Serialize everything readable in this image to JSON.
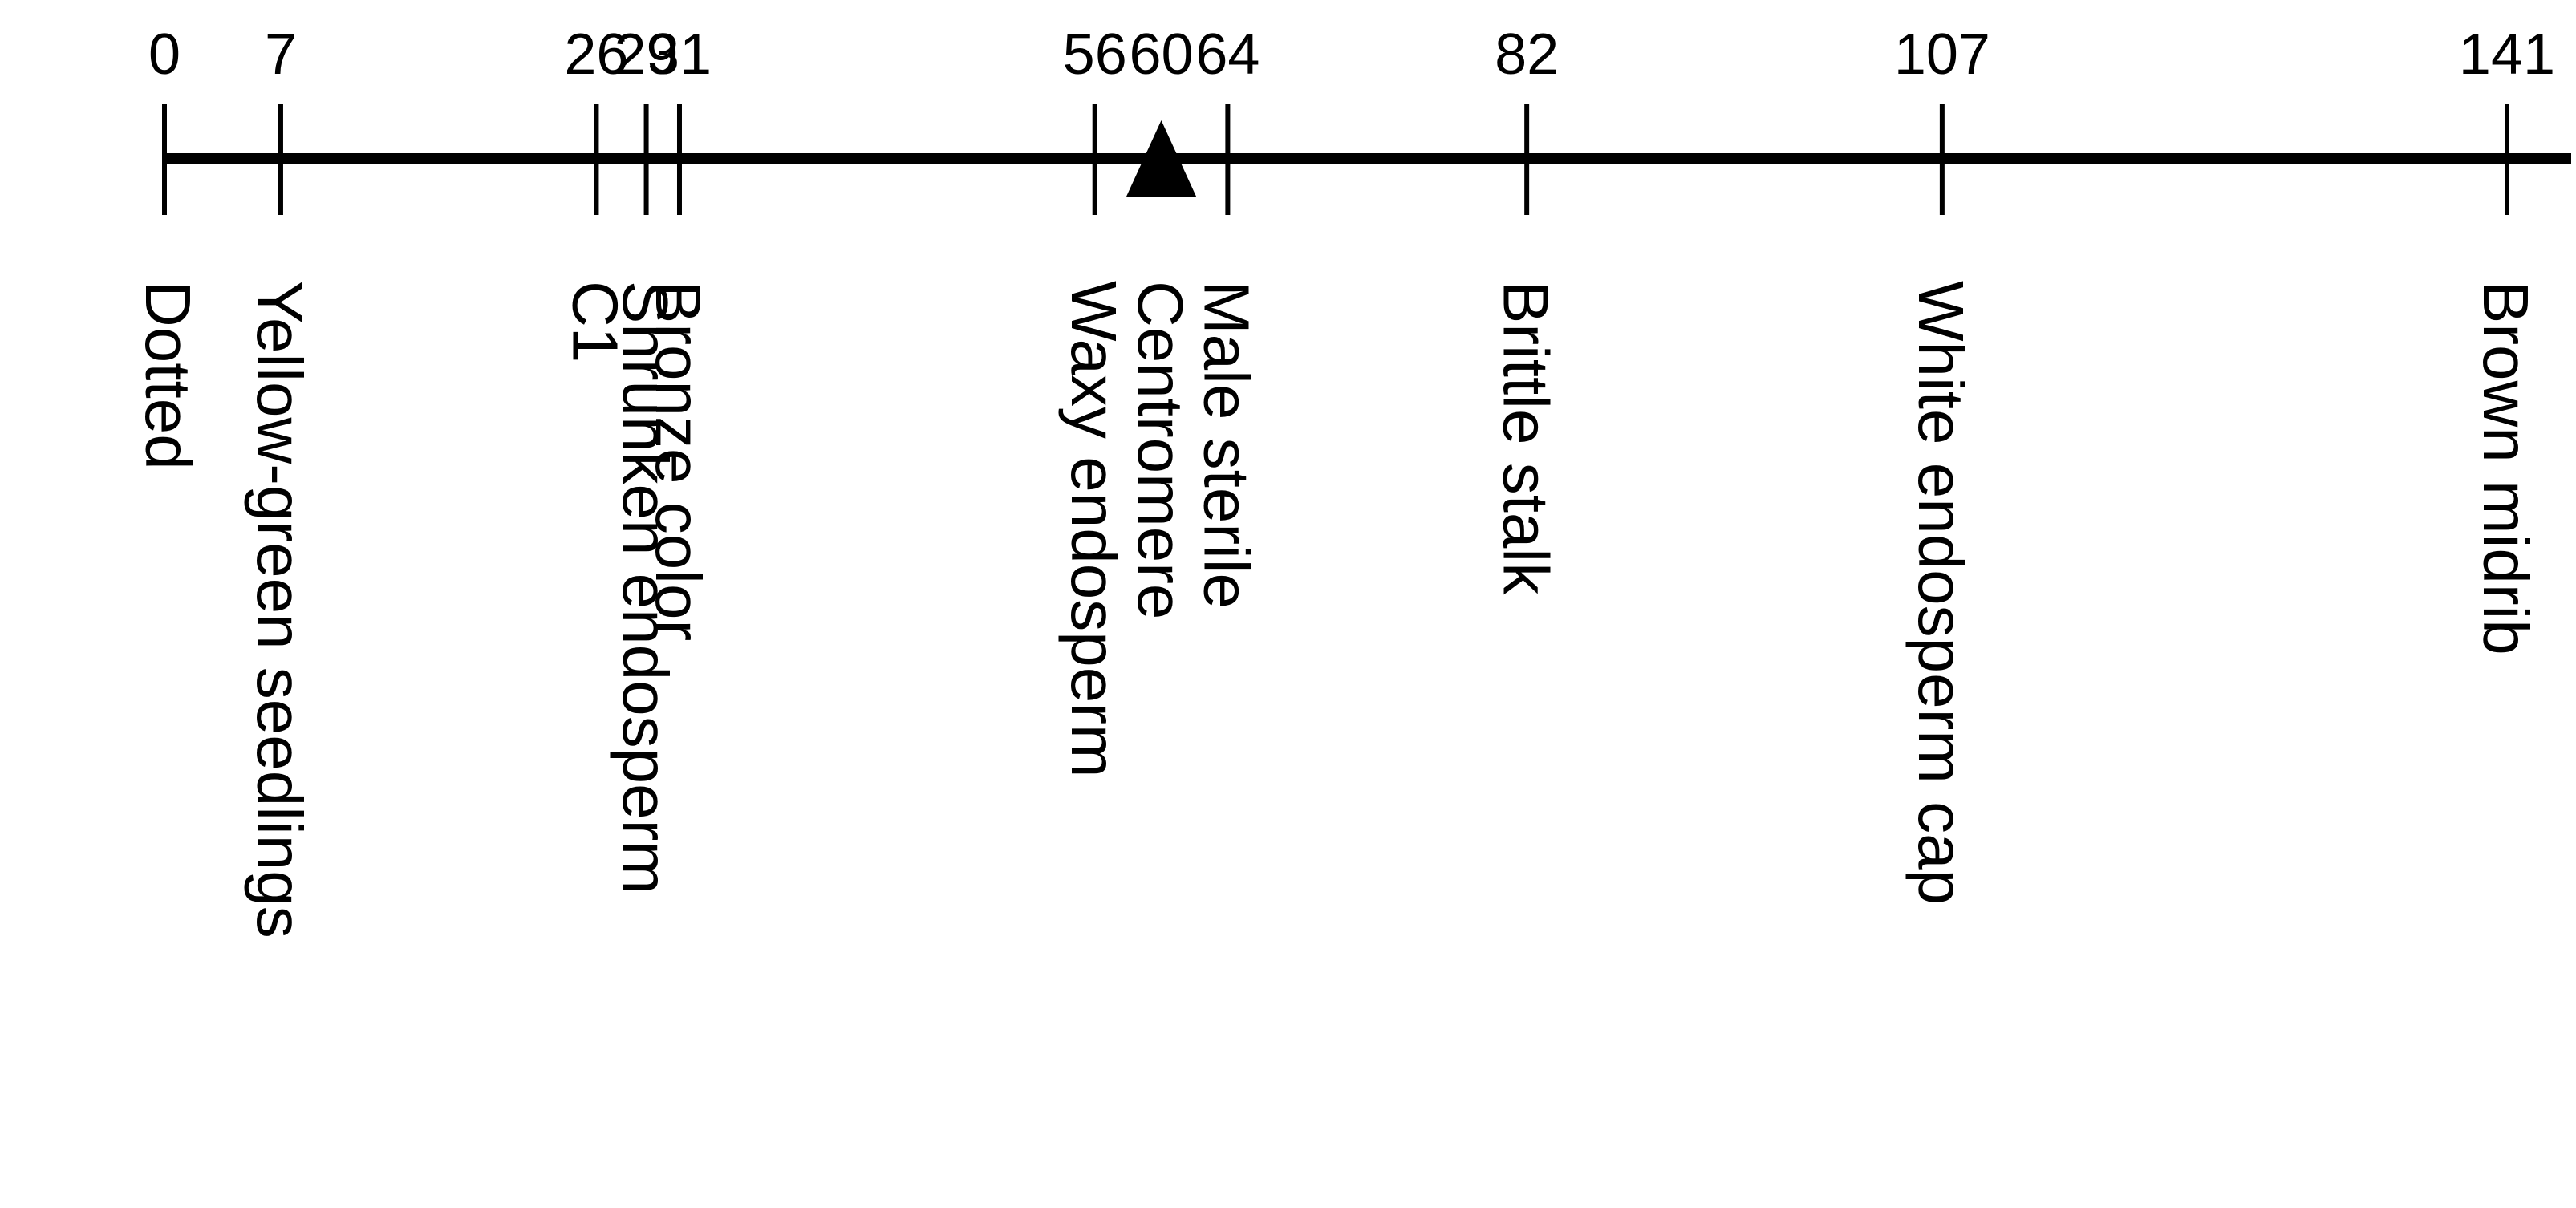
{
  "axis": {
    "min": 0,
    "max": 141
  },
  "centromere": {
    "position": 60,
    "label": "Centromere"
  },
  "markers": [
    {
      "position": 0,
      "position_label": "0",
      "gene": "Dotted"
    },
    {
      "position": 7,
      "position_label": "7",
      "gene": "Yellow-green seedlings"
    },
    {
      "position": 26,
      "position_label": "26",
      "gene": "C1"
    },
    {
      "position": 29,
      "position_label": "29",
      "gene": "Shrunken endosperm"
    },
    {
      "position": 31,
      "position_label": "31",
      "gene": "Bronze color"
    },
    {
      "position": 56,
      "position_label": "56",
      "gene": "Waxy endosperm"
    },
    {
      "position": 64,
      "position_label": "64",
      "gene": "Male sterile"
    },
    {
      "position": 82,
      "position_label": "82",
      "gene": "Brittle stalk"
    },
    {
      "position": 107,
      "position_label": "107",
      "gene": "White endosperm cap"
    },
    {
      "position": 141,
      "position_label": "141",
      "gene": "Brown midrib"
    }
  ],
  "centromere_position_label": "60",
  "colors": {
    "line": "#000000",
    "text": "#000000",
    "background": "#ffffff"
  }
}
